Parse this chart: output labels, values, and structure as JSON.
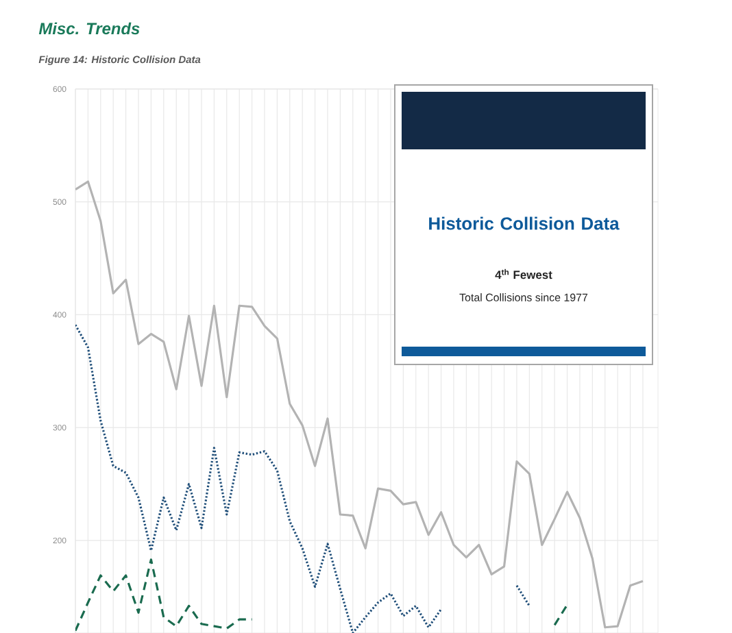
{
  "chart_data": {
    "type": "line",
    "title": "Misc. Trends",
    "subtitle": "Figure 14: Historic Collision Data",
    "categories": [
      null,
      null,
      null,
      null,
      null,
      null,
      null,
      null,
      null,
      null,
      null,
      null,
      null,
      null,
      null,
      null,
      null,
      null,
      null,
      null,
      null,
      null,
      null,
      null,
      null,
      null,
      null,
      null,
      null,
      null,
      null,
      null,
      null,
      null,
      null,
      null,
      null,
      null,
      null,
      null,
      null,
      null,
      null,
      null,
      null,
      null
    ],
    "series": [
      {
        "color": "#b3b3b3",
        "line_style": "solid",
        "values": [
          511,
          518,
          483,
          419,
          431,
          374,
          383,
          376,
          334,
          399,
          337,
          408,
          327,
          408,
          407,
          390,
          379,
          321,
          302,
          266,
          308,
          223,
          222,
          193,
          246,
          244,
          232,
          234,
          205,
          225,
          196,
          185,
          196,
          170,
          177,
          270,
          259,
          196,
          219,
          243,
          220,
          184,
          123,
          124,
          160,
          164
        ]
      },
      {
        "color": "#1f4e79",
        "line_style": "dotted",
        "values": [
          391,
          371,
          306,
          266,
          260,
          238,
          191,
          238,
          209,
          250,
          211,
          282,
          223,
          278,
          276,
          279,
          262,
          217,
          193,
          159,
          197,
          157,
          118,
          132,
          145,
          153,
          133,
          142,
          123,
          139,
          null,
          null,
          null,
          null,
          null,
          160,
          142,
          null,
          null,
          null,
          null,
          null,
          null,
          null,
          null,
          null
        ]
      },
      {
        "color": "#1a6b4f",
        "line_style": "dashed",
        "values": [
          120,
          145,
          169,
          155,
          169,
          136,
          183,
          132,
          124,
          142,
          126,
          124,
          122,
          130,
          130,
          null,
          null,
          null,
          null,
          null,
          null,
          null,
          null,
          null,
          null,
          null,
          null,
          null,
          null,
          null,
          null,
          null,
          null,
          null,
          null,
          null,
          null,
          null,
          125,
          143,
          null,
          null,
          null,
          null,
          null,
          null
        ]
      }
    ],
    "ylim": [
      118,
      600
    ],
    "yticks": [
      200,
      300,
      400,
      500,
      600
    ],
    "grid": true,
    "tick_labels": "y",
    "marker": "none",
    "annotations": [
      "Historic Collision Data",
      "4$^{th}$ Fewest",
      "Total Collisions since 1977"
    ]
  }
}
